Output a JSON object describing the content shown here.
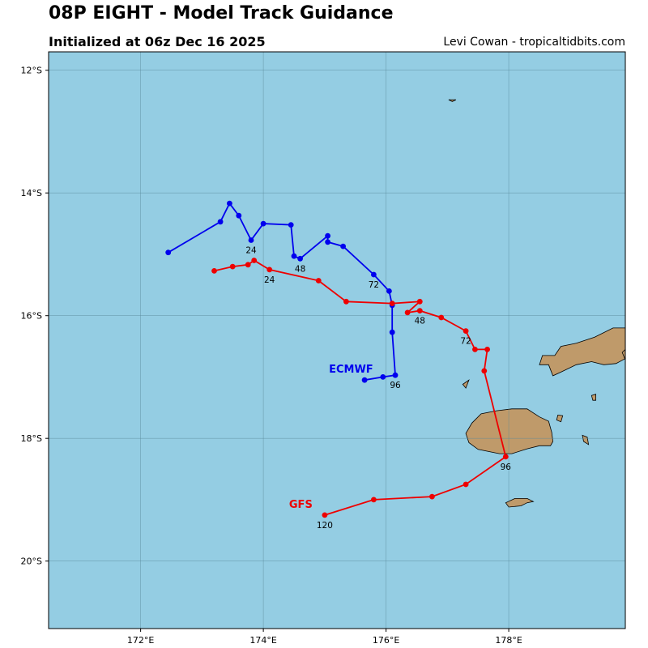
{
  "title": "08P EIGHT - Model Track Guidance",
  "subtitle": "Initialized at 06z Dec 16 2025",
  "credit": "Levi Cowan - tropicaltidbits.com",
  "colors": {
    "ocean": "#94cde3",
    "land": "#bf9a6a",
    "grid": "#5a8a9a",
    "ecmwf": "#0000ee",
    "gfs": "#ee0000"
  },
  "map": {
    "lon_range": [
      170.5,
      179.9
    ],
    "lat_range": [
      -21.1,
      -11.7
    ],
    "lon_ticks": [
      {
        "lon": 172,
        "label": "172°E"
      },
      {
        "lon": 174,
        "label": "174°E"
      },
      {
        "lon": 176,
        "label": "176°E"
      },
      {
        "lon": 178,
        "label": "178°E"
      }
    ],
    "lat_ticks": [
      {
        "lat": -12,
        "label": "12°S"
      },
      {
        "lat": -14,
        "label": "14°S"
      },
      {
        "lat": -16,
        "label": "16°S"
      },
      {
        "lat": -18,
        "label": "18°S"
      },
      {
        "lat": -20,
        "label": "20°S"
      }
    ]
  },
  "tracks": [
    {
      "model": "ECMWF",
      "color": "#0000ee",
      "label": "ECMWF",
      "points": [
        [
          172.45,
          -14.97
        ],
        [
          173.3,
          -14.47
        ],
        [
          173.45,
          -14.17
        ],
        [
          173.6,
          -14.37
        ],
        [
          173.8,
          -14.77
        ],
        [
          174.0,
          -14.5
        ],
        [
          174.45,
          -14.52
        ],
        [
          174.5,
          -15.03
        ],
        [
          174.6,
          -15.07
        ],
        [
          175.05,
          -14.7
        ],
        [
          175.05,
          -14.8
        ],
        [
          175.3,
          -14.87
        ],
        [
          175.8,
          -15.33
        ],
        [
          176.05,
          -15.6
        ],
        [
          176.1,
          -15.83
        ],
        [
          176.1,
          -16.27
        ],
        [
          176.15,
          -16.97
        ],
        [
          175.95,
          -17.0
        ],
        [
          175.65,
          -17.05
        ]
      ],
      "hour_labels": [
        {
          "text": "24",
          "lon": 173.8,
          "lat": -14.77
        },
        {
          "text": "48",
          "lon": 174.6,
          "lat": -15.07
        },
        {
          "text": "72",
          "lon": 175.8,
          "lat": -15.33
        },
        {
          "text": "96",
          "lon": 176.15,
          "lat": -16.97
        }
      ]
    },
    {
      "model": "GFS",
      "color": "#ee0000",
      "label": "GFS",
      "points": [
        [
          173.2,
          -15.27
        ],
        [
          173.5,
          -15.2
        ],
        [
          173.75,
          -15.17
        ],
        [
          173.85,
          -15.1
        ],
        [
          174.1,
          -15.25
        ],
        [
          174.9,
          -15.43
        ],
        [
          175.35,
          -15.77
        ],
        [
          176.1,
          -15.8
        ],
        [
          176.55,
          -15.77
        ],
        [
          176.35,
          -15.95
        ],
        [
          176.55,
          -15.92
        ],
        [
          176.9,
          -16.03
        ],
        [
          177.3,
          -16.25
        ],
        [
          177.45,
          -16.55
        ],
        [
          177.65,
          -16.55
        ],
        [
          177.6,
          -16.9
        ],
        [
          177.95,
          -18.3
        ],
        [
          177.3,
          -18.75
        ],
        [
          176.75,
          -18.95
        ],
        [
          175.8,
          -19.0
        ],
        [
          175.0,
          -19.25
        ]
      ],
      "hour_labels": [
        {
          "text": "24",
          "lon": 174.1,
          "lat": -15.25
        },
        {
          "text": "48",
          "lon": 176.55,
          "lat": -15.92
        },
        {
          "text": "72",
          "lon": 177.3,
          "lat": -16.25
        },
        {
          "text": "96",
          "lon": 177.95,
          "lat": -18.3
        },
        {
          "text": "120",
          "lon": 175.0,
          "lat": -19.25
        }
      ]
    }
  ],
  "islands": [
    {
      "name": "viti-levu",
      "coords": [
        [
          178.5,
          -17.65
        ],
        [
          178.65,
          -17.72
        ],
        [
          178.7,
          -17.9
        ],
        [
          178.72,
          -18.05
        ],
        [
          178.68,
          -18.12
        ],
        [
          178.5,
          -18.12
        ],
        [
          178.3,
          -18.17
        ],
        [
          178.05,
          -18.25
        ],
        [
          177.85,
          -18.25
        ],
        [
          177.5,
          -18.18
        ],
        [
          177.35,
          -18.07
        ],
        [
          177.3,
          -17.92
        ],
        [
          177.4,
          -17.75
        ],
        [
          177.55,
          -17.6
        ],
        [
          177.8,
          -17.55
        ],
        [
          178.05,
          -17.52
        ],
        [
          178.3,
          -17.52
        ]
      ]
    },
    {
      "name": "vanua-levu",
      "coords": [
        [
          179.9,
          -16.2
        ],
        [
          179.7,
          -16.2
        ],
        [
          179.4,
          -16.35
        ],
        [
          179.1,
          -16.45
        ],
        [
          178.85,
          -16.5
        ],
        [
          178.75,
          -16.65
        ],
        [
          178.55,
          -16.65
        ],
        [
          178.5,
          -16.8
        ],
        [
          178.65,
          -16.8
        ],
        [
          178.72,
          -16.98
        ],
        [
          178.85,
          -16.92
        ],
        [
          179.1,
          -16.8
        ],
        [
          179.35,
          -16.75
        ],
        [
          179.55,
          -16.8
        ],
        [
          179.75,
          -16.78
        ],
        [
          179.9,
          -16.7
        ]
      ]
    },
    {
      "name": "taveuni",
      "coords": [
        [
          179.9,
          -16.55
        ],
        [
          179.85,
          -16.6
        ],
        [
          179.9,
          -16.72
        ]
      ]
    },
    {
      "name": "kadavu",
      "coords": [
        [
          177.95,
          -19.05
        ],
        [
          178.1,
          -18.98
        ],
        [
          178.3,
          -18.98
        ],
        [
          178.4,
          -19.03
        ],
        [
          178.3,
          -19.05
        ],
        [
          178.2,
          -19.1
        ],
        [
          178.0,
          -19.12
        ]
      ]
    },
    {
      "name": "ovalau",
      "coords": [
        [
          178.8,
          -17.62
        ],
        [
          178.88,
          -17.63
        ],
        [
          178.85,
          -17.73
        ],
        [
          178.78,
          -17.7
        ]
      ]
    },
    {
      "name": "koro",
      "coords": [
        [
          179.35,
          -17.3
        ],
        [
          179.42,
          -17.28
        ],
        [
          179.42,
          -17.38
        ],
        [
          179.37,
          -17.38
        ]
      ]
    },
    {
      "name": "gau",
      "coords": [
        [
          179.2,
          -17.95
        ],
        [
          179.28,
          -17.98
        ],
        [
          179.3,
          -18.1
        ],
        [
          179.22,
          -18.05
        ]
      ]
    },
    {
      "name": "yasawa",
      "coords": [
        [
          177.25,
          -17.12
        ],
        [
          177.35,
          -17.05
        ],
        [
          177.3,
          -17.18
        ]
      ]
    },
    {
      "name": "rotuma",
      "coords": [
        [
          177.02,
          -12.48
        ],
        [
          177.14,
          -12.48
        ],
        [
          177.08,
          -12.51
        ]
      ]
    }
  ]
}
